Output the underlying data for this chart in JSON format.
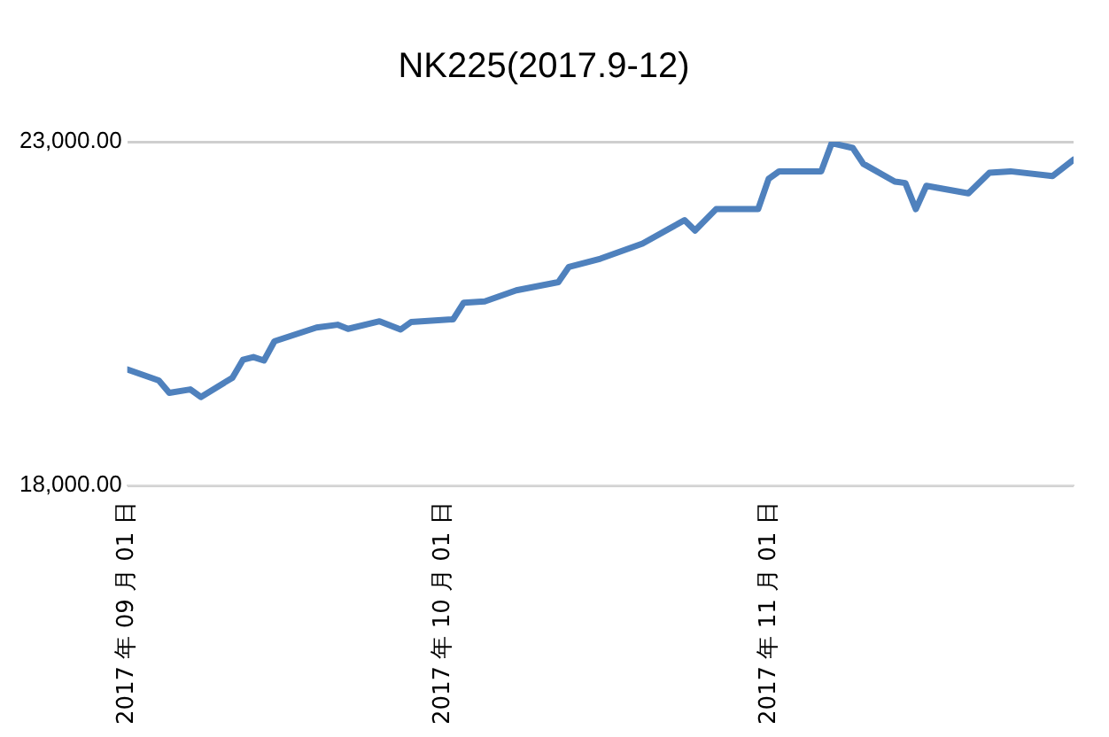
{
  "chart_data": {
    "type": "line",
    "title": "NK225(2017.9-12)",
    "x": [
      "2017-09-01",
      "2017-09-04",
      "2017-09-05",
      "2017-09-07",
      "2017-09-08",
      "2017-09-11",
      "2017-09-12",
      "2017-09-13",
      "2017-09-14",
      "2017-09-15",
      "2017-09-19",
      "2017-09-21",
      "2017-09-22",
      "2017-09-25",
      "2017-09-27",
      "2017-09-28",
      "2017-10-02",
      "2017-10-03",
      "2017-10-05",
      "2017-10-08",
      "2017-10-12",
      "2017-10-13",
      "2017-10-16",
      "2017-10-20",
      "2017-10-24",
      "2017-10-25",
      "2017-10-27",
      "2017-10-31",
      "2017-11-01",
      "2017-11-02",
      "2017-11-06",
      "2017-11-07",
      "2017-11-09",
      "2017-11-10",
      "2017-11-13",
      "2017-11-14",
      "2017-11-15",
      "2017-11-16",
      "2017-11-20",
      "2017-11-22",
      "2017-11-24",
      "2017-11-28",
      "2017-11-30"
    ],
    "series": [
      {
        "color": "#4f81bd",
        "values": [
          19690,
          19530,
          19350,
          19400,
          19290,
          19570,
          19830,
          19870,
          19820,
          20100,
          20300,
          20340,
          20280,
          20390,
          20270,
          20380,
          20420,
          20660,
          20680,
          20840,
          20960,
          21180,
          21300,
          21520,
          21860,
          21710,
          22020,
          22020,
          22460,
          22570,
          22570,
          22980,
          22910,
          22680,
          22420,
          22400,
          22020,
          22360,
          22250,
          22550,
          22570,
          22500,
          22740
        ]
      }
    ],
    "xlim": [
      "2017-09-01",
      "2017-11-30"
    ],
    "xticks": [
      {
        "value": "2017-09-01",
        "label": "2017 年 09 月 01 日"
      },
      {
        "value": "2017-10-01",
        "label": "2017 年 10 月 01 日"
      },
      {
        "value": "2017-11-01",
        "label": "2017 年 11 月 01 日"
      }
    ],
    "ylim": [
      18000,
      23000
    ],
    "yticks": [
      {
        "value": 18000,
        "label": "18,000.00"
      },
      {
        "value": 23000,
        "label": "23,000.00"
      }
    ],
    "grid": "y",
    "legend": false,
    "marker": "none",
    "line_style": "solid"
  }
}
